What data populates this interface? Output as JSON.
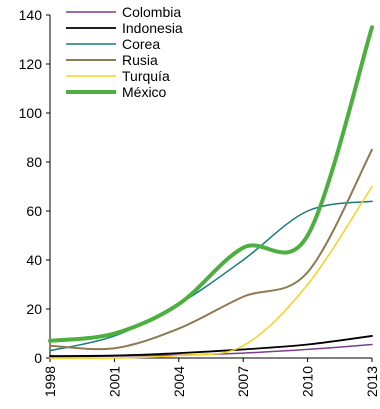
{
  "chart_data": {
    "type": "line",
    "title": "",
    "xlabel": "",
    "ylabel": "",
    "x_ticks": [
      "1998",
      "2001",
      "2004",
      "2007",
      "2010",
      "2013"
    ],
    "y_ticks": [
      "0",
      "20",
      "40",
      "60",
      "80",
      "100",
      "120",
      "140"
    ],
    "xlim": [
      1998,
      2013
    ],
    "ylim": [
      0,
      140
    ],
    "grid": false,
    "legend_position": "top-left",
    "x": [
      1998,
      2001,
      2004,
      2007,
      2010,
      2013
    ],
    "series": [
      {
        "name": "Colombia",
        "color": "#7b3f8c",
        "width": 1.5,
        "values": [
          0.5,
          0.8,
          1.2,
          2,
          3.5,
          5.5
        ]
      },
      {
        "name": "Indonesia",
        "color": "#000000",
        "width": 1.8,
        "values": [
          0.8,
          1,
          2,
          3.5,
          5.5,
          9
        ]
      },
      {
        "name": "Corea",
        "color": "#167a7a",
        "width": 1.5,
        "values": [
          3,
          9,
          22,
          40,
          60,
          64
        ]
      },
      {
        "name": "Rusia",
        "color": "#8c7a50",
        "width": 2,
        "values": [
          5,
          4,
          12,
          25,
          35,
          85
        ]
      },
      {
        "name": "Turquía",
        "color": "#f5d21f",
        "width": 1.5,
        "values": [
          0,
          0,
          1,
          5,
          30,
          70
        ]
      },
      {
        "name": "México",
        "color": "#4daf3f",
        "width": 4,
        "values": [
          7,
          10,
          22,
          45,
          50,
          135
        ]
      }
    ]
  }
}
